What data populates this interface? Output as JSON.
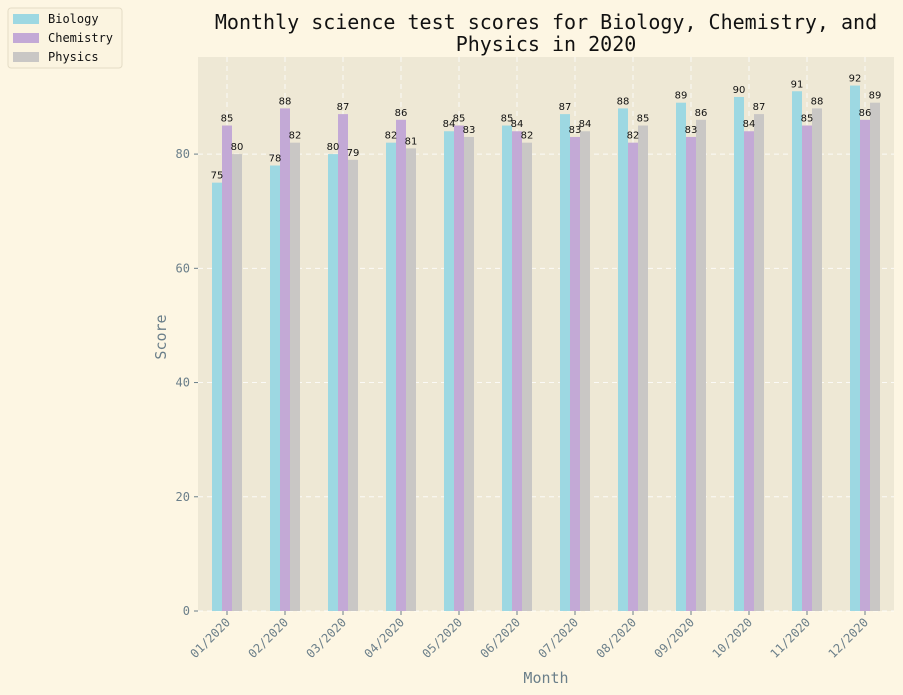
{
  "chart_data": {
    "type": "bar",
    "title_lines": [
      "Monthly science test scores for Biology, Chemistry, and",
      "Physics in 2020"
    ],
    "xlabel": "Month",
    "ylabel": "Score",
    "categories": [
      "01/2020",
      "02/2020",
      "03/2020",
      "04/2020",
      "05/2020",
      "06/2020",
      "07/2020",
      "08/2020",
      "09/2020",
      "10/2020",
      "11/2020",
      "12/2020"
    ],
    "series": [
      {
        "name": "Biology",
        "color": "#9dd8e2",
        "values": [
          75,
          78,
          80,
          82,
          84,
          85,
          87,
          88,
          89,
          90,
          91,
          92
        ]
      },
      {
        "name": "Chemistry",
        "color": "#c3a9d6",
        "values": [
          85,
          88,
          87,
          86,
          85,
          84,
          83,
          82,
          83,
          84,
          85,
          86
        ]
      },
      {
        "name": "Physics",
        "color": "#c9c7c5",
        "values": [
          80,
          82,
          79,
          81,
          83,
          82,
          84,
          85,
          86,
          87,
          88,
          89
        ]
      }
    ],
    "ylim": [
      0,
      97
    ],
    "yticks": [
      0,
      20,
      40,
      60,
      80
    ],
    "grid": true,
    "legend_position": "top-left outside",
    "plot_background": "#eee8d5",
    "page_background": "#fdf6e3"
  }
}
